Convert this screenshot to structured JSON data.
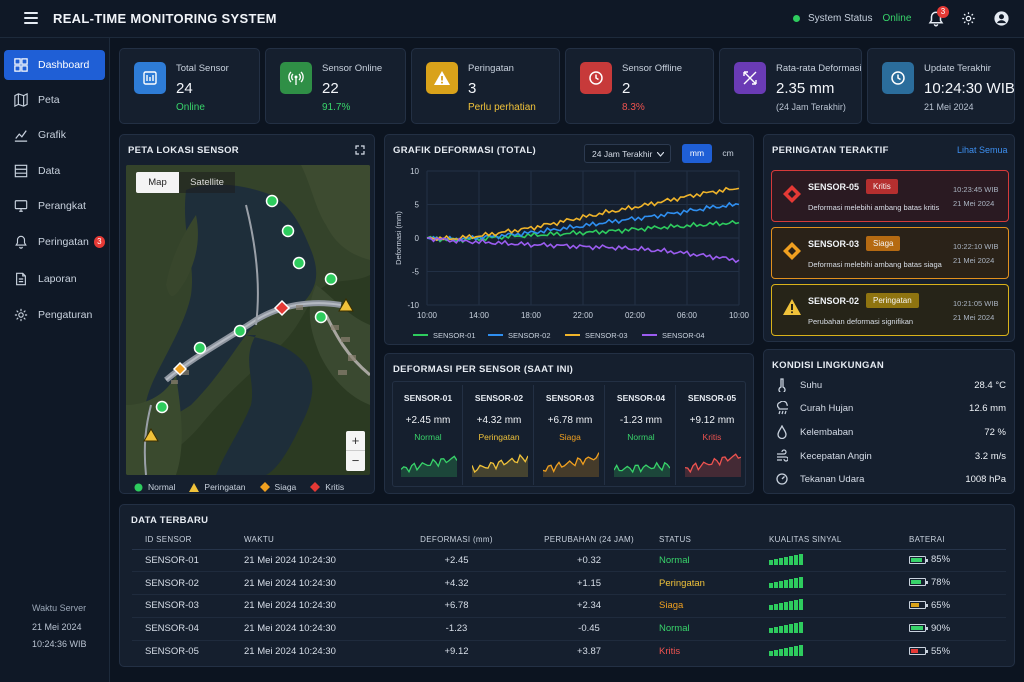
{
  "app": {
    "title": "REAL-TIME MONITORING SYSTEM"
  },
  "header": {
    "status_label": "System Status",
    "status_value": "Online",
    "notif_count": "3"
  },
  "sidebar": {
    "items": [
      {
        "label": "Dashboard",
        "icon": "dashboard-icon"
      },
      {
        "label": "Peta",
        "icon": "map-icon"
      },
      {
        "label": "Grafik",
        "icon": "chart-icon"
      },
      {
        "label": "Data",
        "icon": "data-icon"
      },
      {
        "label": "Perangkat",
        "icon": "device-icon"
      },
      {
        "label": "Peringatan",
        "icon": "bell-icon",
        "badge": "3"
      },
      {
        "label": "Laporan",
        "icon": "report-icon"
      },
      {
        "label": "Pengaturan",
        "icon": "gear-icon"
      }
    ],
    "server_time": {
      "label": "Waktu Server",
      "date": "21 Mei 2024",
      "time": "10:24:36 WIB"
    }
  },
  "stats": [
    {
      "title": "Total Sensor",
      "value": "24",
      "sub": "Online",
      "color": "#2e7cd6",
      "sub_color": "#38d36a"
    },
    {
      "title": "Sensor Online",
      "value": "22",
      "sub": "91.7%",
      "color": "#2f8f46",
      "sub_color": "#38d36a"
    },
    {
      "title": "Peringatan",
      "value": "3",
      "sub": "Perlu perhatian",
      "color": "#d9a21a",
      "sub_color": "#f0c23a"
    },
    {
      "title": "Sensor Offline",
      "value": "2",
      "sub": "8.3%",
      "color": "#c73a3a",
      "sub_color": "#ef5350"
    },
    {
      "title": "Rata-rata Deformasi",
      "value": "2.35 mm",
      "sub": "(24 Jam Terakhir)",
      "color": "#6a3bb5",
      "sub_color": "#b9c3d1"
    },
    {
      "title": "Update Terakhir",
      "value": "10:24:30 WIB",
      "sub": "21 Mei 2024",
      "color": "#2b6d9c",
      "sub_color": "#b9c3d1"
    }
  ],
  "map": {
    "title": "PETA LOKASI SENSOR",
    "tab_map": "Map",
    "tab_satellite": "Satellite",
    "zoom_in": "+",
    "zoom_out": "−",
    "legend": [
      "Normal",
      "Peringatan",
      "Siaga",
      "Kritis"
    ]
  },
  "chart_panel": {
    "title": "GRAFIK DEFORMASI (TOTAL)",
    "range_select": "24 Jam Terakhir",
    "unit_mm": "mm",
    "unit_cm": "cm"
  },
  "chart_data": {
    "type": "line",
    "title": "",
    "xlabel": "",
    "ylabel": "Deformasi (mm)",
    "x": [
      "10:00",
      "12:00",
      "14:00",
      "16:00",
      "18:00",
      "20:00",
      "22:00",
      "00:00",
      "02:00",
      "04:00",
      "06:00",
      "08:00",
      "10:00"
    ],
    "xticks": [
      "10:00",
      "14:00",
      "18:00",
      "22:00",
      "02:00",
      "06:00",
      "10:00"
    ],
    "yticks": [
      10,
      5,
      0,
      -5,
      -10
    ],
    "ylim": [
      -10,
      10
    ],
    "grid": true,
    "legend": "bottom",
    "series": [
      {
        "name": "SENSOR-01",
        "color": "#2ecc5e",
        "values": [
          0,
          -0.3,
          -0.1,
          0.2,
          0.4,
          0.6,
          0.8,
          1.0,
          1.3,
          1.6,
          1.8,
          2.1,
          2.3
        ]
      },
      {
        "name": "SENSOR-02",
        "color": "#2f8ff0",
        "values": [
          0,
          -0.2,
          0.1,
          0.4,
          0.8,
          1.3,
          1.8,
          2.4,
          2.9,
          3.4,
          4.0,
          4.6,
          5.0
        ]
      },
      {
        "name": "SENSOR-03",
        "color": "#f0b42a",
        "values": [
          0,
          -0.1,
          0.3,
          0.9,
          1.5,
          2.3,
          3.1,
          3.9,
          4.6,
          5.4,
          6.2,
          6.9,
          7.4
        ]
      },
      {
        "name": "SENSOR-04",
        "color": "#9b5cf0",
        "values": [
          0,
          -0.4,
          -0.6,
          -0.8,
          -1.0,
          -1.1,
          -1.3,
          -1.4,
          -1.6,
          -1.9,
          -2.3,
          -2.8,
          -3.3
        ]
      }
    ]
  },
  "per_sensor": {
    "title": "DEFORMASI PER SENSOR (SAAT INI)",
    "items": [
      {
        "name": "SENSOR-01",
        "value": "+2.45 mm",
        "status": "Normal",
        "color": "#38d36a"
      },
      {
        "name": "SENSOR-02",
        "value": "+4.32 mm",
        "status": "Peringatan",
        "color": "#f0c23a"
      },
      {
        "name": "SENSOR-03",
        "value": "+6.78 mm",
        "status": "Siaga",
        "color": "#f0a020"
      },
      {
        "name": "SENSOR-04",
        "value": "-1.23 mm",
        "status": "Normal",
        "color": "#38d36a"
      },
      {
        "name": "SENSOR-05",
        "value": "+9.12 mm",
        "status": "Kritis",
        "color": "#ef5350"
      }
    ]
  },
  "alerts": {
    "title": "PERINGATAN TERAKTIF",
    "view_all": "Lihat Semua",
    "items": [
      {
        "name": "SENSOR-05",
        "badge": "Kritis",
        "desc": "Deformasi melebihi ambang batas kritis",
        "time": "10:23:45 WIB",
        "date": "21 Mei 2024",
        "color": "#d63a3a",
        "bg": "#2a1a22",
        "badge_bg": "#b52f2f"
      },
      {
        "name": "SENSOR-03",
        "badge": "Siaga",
        "desc": "Deformasi melebihi ambang batas siaga",
        "time": "10:22:10 WIB",
        "date": "21 Mei 2024",
        "color": "#e0901e",
        "bg": "#2a2218",
        "badge_bg": "#b56a12"
      },
      {
        "name": "SENSOR-02",
        "badge": "Peringatan",
        "desc": "Perubahan deformasi signifikan",
        "time": "10:21:05 WIB",
        "date": "21 Mei 2024",
        "color": "#d9b21a",
        "bg": "#262418",
        "badge_bg": "#8f7410"
      }
    ]
  },
  "env": {
    "title": "KONDISI LINGKUNGAN",
    "items": [
      {
        "label": "Suhu",
        "value": "28.4 °C",
        "icon": "thermometer-icon"
      },
      {
        "label": "Curah Hujan",
        "value": "12.6 mm",
        "icon": "rain-icon"
      },
      {
        "label": "Kelembaban",
        "value": "72 %",
        "icon": "droplet-icon"
      },
      {
        "label": "Kecepatan Angin",
        "value": "3.2 m/s",
        "icon": "wind-icon"
      },
      {
        "label": "Tekanan Udara",
        "value": "1008 hPa",
        "icon": "gauge-icon"
      }
    ]
  },
  "table": {
    "title": "DATA TERBARU",
    "headers": [
      "ID SENSOR",
      "WAKTU",
      "DEFORMASI (mm)",
      "PERUBAHAN (24 JAM)",
      "STATUS",
      "KUALITAS SINYAL",
      "BATERAI"
    ],
    "rows": [
      {
        "id": "SENSOR-01",
        "time": "21 Mei 2024 10:24:30",
        "def": "+2.45",
        "chg": "+0.32",
        "status": "Normal",
        "status_color": "#38d36a",
        "battery": "85%",
        "battery_level": 0.85,
        "battery_color": "#38d36a"
      },
      {
        "id": "SENSOR-02",
        "time": "21 Mei 2024 10:24:30",
        "def": "+4.32",
        "chg": "+1.15",
        "status": "Peringatan",
        "status_color": "#f0c23a",
        "battery": "78%",
        "battery_level": 0.78,
        "battery_color": "#38d36a"
      },
      {
        "id": "SENSOR-03",
        "time": "21 Mei 2024 10:24:30",
        "def": "+6.78",
        "chg": "+2.34",
        "status": "Siaga",
        "status_color": "#f0a020",
        "battery": "65%",
        "battery_level": 0.65,
        "battery_color": "#d9a21a"
      },
      {
        "id": "SENSOR-04",
        "time": "21 Mei 2024 10:24:30",
        "def": "-1.23",
        "chg": "-0.45",
        "status": "Normal",
        "status_color": "#38d36a",
        "battery": "90%",
        "battery_level": 0.9,
        "battery_color": "#38d36a"
      },
      {
        "id": "SENSOR-05",
        "time": "21 Mei 2024 10:24:30",
        "def": "+9.12",
        "chg": "+3.87",
        "status": "Kritis",
        "status_color": "#ef5350",
        "battery": "55%",
        "battery_level": 0.55,
        "battery_color": "#e53935"
      }
    ]
  }
}
